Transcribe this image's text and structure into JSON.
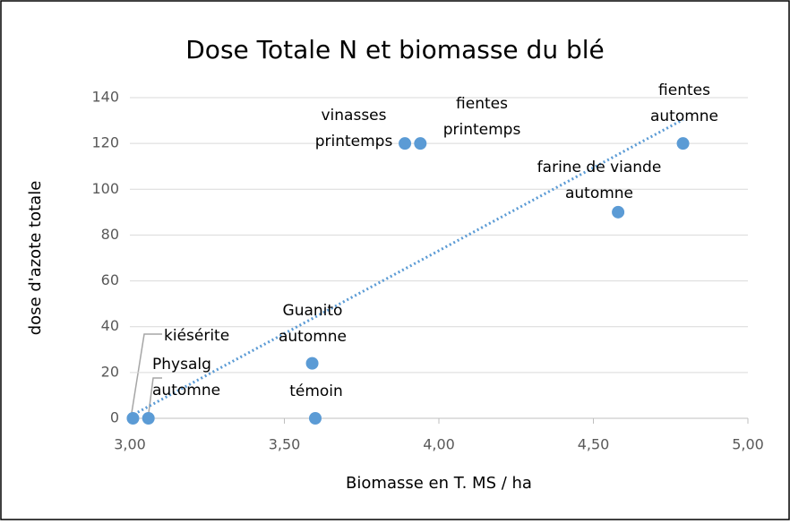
{
  "chart_data": {
    "type": "scatter",
    "title": "Dose Totale N et biomasse du blé",
    "x_label": "Biomasse en T. MS / ha",
    "y_label": "dose d'azote totale",
    "x": [
      3.01,
      3.06,
      3.6,
      3.59,
      3.89,
      3.94,
      4.58,
      4.79
    ],
    "values": [
      0,
      0,
      0,
      24,
      120,
      120,
      90,
      120
    ],
    "point_labels": [
      [
        "kiésérite"
      ],
      [
        "Physalg",
        "automne"
      ],
      [
        "témoin"
      ],
      [
        "Guanito",
        "automne"
      ],
      [
        "vinasses",
        "printemps"
      ],
      [
        "fientes",
        "printemps"
      ],
      [
        "farine de viande",
        "automne"
      ],
      [
        "fientes",
        "automne"
      ]
    ],
    "color": "#5b9bd5",
    "trendline": {
      "x": [
        3.0,
        4.79
      ],
      "values": [
        0.8,
        130.4
      ]
    },
    "xlim": [
      3,
      5
    ],
    "ylim": [
      0,
      140
    ],
    "xticks": [
      {
        "value": 3,
        "label": "3,00"
      },
      {
        "value": 3.5,
        "label": "3,50"
      },
      {
        "value": 4,
        "label": "4,00"
      },
      {
        "value": 4.5,
        "label": "4,50"
      },
      {
        "value": 5,
        "label": "5,00"
      }
    ],
    "yticks": [
      0,
      20,
      40,
      60,
      80,
      100,
      120,
      140
    ],
    "grid": true
  }
}
